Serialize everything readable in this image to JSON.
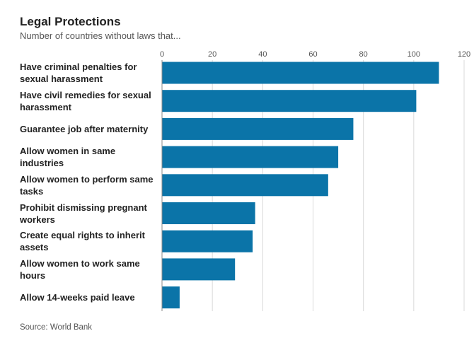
{
  "chart_data": {
    "type": "bar",
    "orientation": "horizontal",
    "title": "Legal Protections",
    "subtitle": "Number of countries without laws that...",
    "source": "Source: World Bank",
    "categories": [
      "Have criminal penalties for sexual harassment",
      "Have civil remedies for sexual harassment",
      "Guarantee job after maternity",
      "Allow women in same industries",
      "Allow women to perform same tasks",
      "Prohibit dismissing pregnant workers",
      "Create equal rights to inherit assets",
      "Allow women to work same hours",
      "Allow 14-weeks paid leave"
    ],
    "values": [
      110,
      101,
      76,
      70,
      66,
      37,
      36,
      29,
      7
    ],
    "xticks": [
      "0",
      "20",
      "40",
      "60",
      "80",
      "100",
      "120"
    ],
    "xlim": [
      0,
      120
    ],
    "grid": true,
    "bar_color": "#0b74a8",
    "grid_color": "#d9d9d9"
  }
}
